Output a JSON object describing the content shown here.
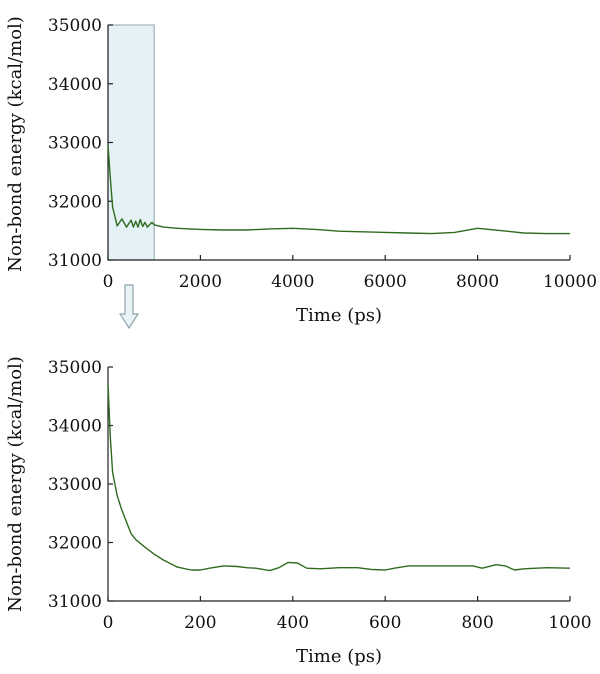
{
  "style": {
    "line_color": "#2e6b1f",
    "highlight_fill": "#e4f2f5",
    "highlight_stroke": "#9fb3bb"
  },
  "chart_data": [
    {
      "type": "line",
      "xlabel": "Time (ps)",
      "ylabel": "Non-bond energy (kcal/mol)",
      "xlim": [
        0,
        10000
      ],
      "ylim": [
        31000,
        35000
      ],
      "xticks": [
        0,
        2000,
        4000,
        6000,
        8000,
        10000
      ],
      "yticks": [
        31000,
        32000,
        33000,
        34000,
        35000
      ],
      "highlight_region": {
        "x": [
          0,
          1000
        ],
        "y": [
          31000,
          35000
        ]
      },
      "series": [
        {
          "x": [
            0,
            50,
            100,
            200,
            300,
            400,
            500,
            550,
            600,
            650,
            700,
            750,
            800,
            850,
            900,
            950,
            1000,
            1200,
            1500,
            2000,
            2500,
            3000,
            3500,
            4000,
            4500,
            5000,
            5500,
            6000,
            6500,
            7000,
            7500,
            8000,
            8500,
            9000,
            9500,
            10000
          ],
          "y": [
            32950,
            32400,
            31900,
            31580,
            31700,
            31560,
            31680,
            31560,
            31660,
            31560,
            31690,
            31570,
            31640,
            31560,
            31600,
            31640,
            31600,
            31560,
            31540,
            31520,
            31510,
            31510,
            31530,
            31540,
            31520,
            31490,
            31480,
            31470,
            31460,
            31450,
            31470,
            31540,
            31500,
            31460,
            31450,
            31450
          ]
        }
      ]
    },
    {
      "type": "line",
      "xlabel": "Time (ps)",
      "ylabel": "Non-bond energy (kcal/mol)",
      "xlim": [
        0,
        1000
      ],
      "ylim": [
        31000,
        35000
      ],
      "xticks": [
        0,
        200,
        400,
        600,
        800,
        1000
      ],
      "yticks": [
        31000,
        32000,
        33000,
        34000,
        35000
      ],
      "series": [
        {
          "x": [
            0,
            5,
            10,
            20,
            30,
            40,
            45,
            50,
            60,
            80,
            100,
            120,
            150,
            180,
            200,
            220,
            250,
            280,
            300,
            320,
            350,
            370,
            390,
            410,
            430,
            460,
            500,
            540,
            570,
            600,
            620,
            650,
            700,
            750,
            790,
            810,
            840,
            860,
            880,
            900,
            950,
            1000
          ],
          "y": [
            34700,
            33800,
            33200,
            32800,
            32550,
            32350,
            32250,
            32150,
            32050,
            31920,
            31800,
            31700,
            31580,
            31530,
            31530,
            31560,
            31600,
            31590,
            31570,
            31560,
            31520,
            31570,
            31660,
            31650,
            31560,
            31550,
            31570,
            31570,
            31540,
            31530,
            31560,
            31600,
            31600,
            31600,
            31600,
            31560,
            31620,
            31600,
            31530,
            31550,
            31570,
            31560
          ]
        }
      ]
    }
  ]
}
